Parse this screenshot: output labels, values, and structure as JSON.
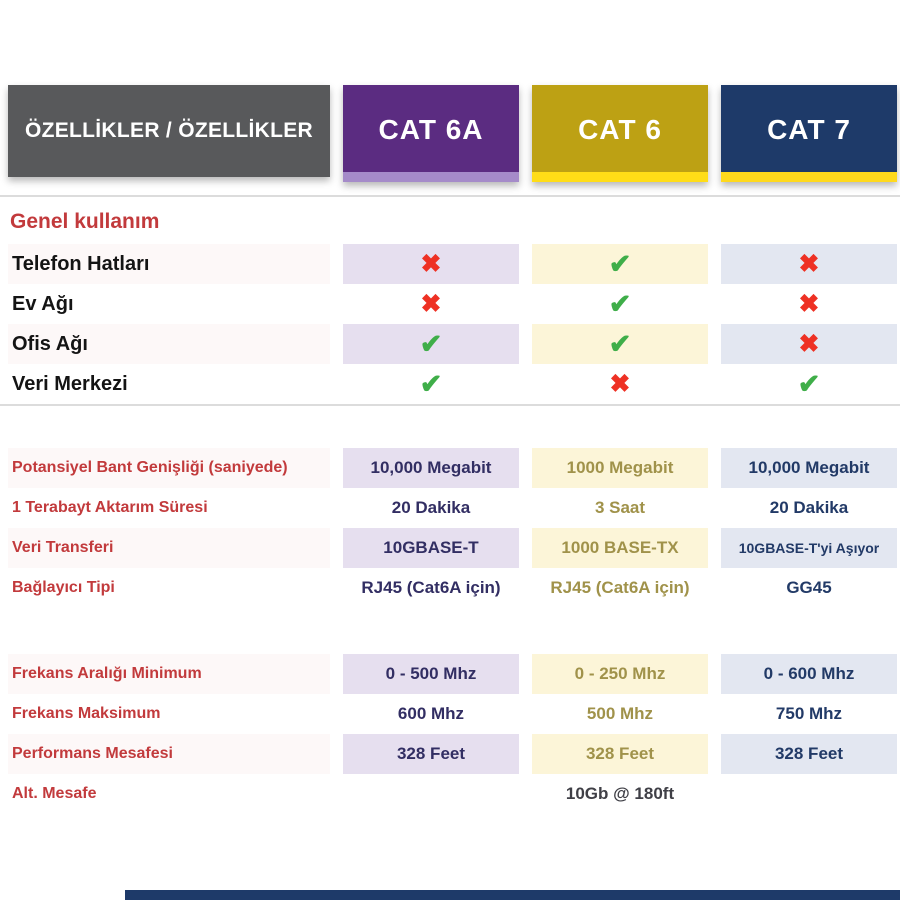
{
  "header": {
    "features_label": "ÖZELLİKLER / ÖZELLİKLER",
    "columns": [
      {
        "id": "cat6a",
        "label": "CAT 6A"
      },
      {
        "id": "cat6",
        "label": "CAT 6"
      },
      {
        "id": "cat7",
        "label": "CAT 7"
      }
    ]
  },
  "sections": {
    "general": {
      "title": "Genel kullanım",
      "rows": [
        {
          "label": "Telefon Hatları",
          "values": [
            "no",
            "yes",
            "no"
          ]
        },
        {
          "label": "Ev Ağı",
          "values": [
            "no",
            "yes",
            "no"
          ]
        },
        {
          "label": "Ofis Ağı",
          "values": [
            "yes",
            "yes",
            "no"
          ]
        },
        {
          "label": "Veri Merkezi",
          "values": [
            "yes",
            "no",
            "yes"
          ]
        }
      ]
    },
    "specs": {
      "rows": [
        {
          "label": "Potansiyel Bant Genişliği (saniyede)",
          "values": [
            "10,000 Megabit",
            "1000 Megabit",
            "10,000 Megabit"
          ]
        },
        {
          "label": "1 Terabayt Aktarım Süresi",
          "values": [
            "20 Dakika",
            "3 Saat",
            "20 Dakika"
          ]
        },
        {
          "label": "Veri Transferi",
          "values": [
            "10GBASE-T",
            "1000 BASE-TX",
            "10GBASE-T'yi Aşıyor"
          ]
        },
        {
          "label": "Bağlayıcı Tipi",
          "values": [
            "RJ45 (Cat6A için)",
            "RJ45 (Cat6A için)",
            "GG45"
          ]
        }
      ]
    },
    "frequency": {
      "rows": [
        {
          "label": "Frekans Aralığı Minimum",
          "values": [
            "0 - 500 Mhz",
            "0 - 250 Mhz",
            "0 - 600 Mhz"
          ]
        },
        {
          "label": "Frekans Maksimum",
          "values": [
            "600 Mhz",
            "500 Mhz",
            "750 Mhz"
          ]
        },
        {
          "label": "Performans Mesafesi",
          "values": [
            "328 Feet",
            "328 Feet",
            "328 Feet"
          ]
        },
        {
          "label": "Alt. Mesafe",
          "values": [
            "",
            "10Gb @ 180ft",
            ""
          ]
        }
      ]
    }
  },
  "chart_data": {
    "type": "table",
    "title": "ÖZELLİKLER / ÖZELLİKLER",
    "columns": [
      "CAT 6A",
      "CAT 6",
      "CAT 7"
    ],
    "rows": [
      {
        "label": "Telefon Hatları",
        "values": [
          "no",
          "yes",
          "no"
        ]
      },
      {
        "label": "Ev Ağı",
        "values": [
          "no",
          "yes",
          "no"
        ]
      },
      {
        "label": "Ofis Ağı",
        "values": [
          "yes",
          "yes",
          "no"
        ]
      },
      {
        "label": "Veri Merkezi",
        "values": [
          "yes",
          "no",
          "yes"
        ]
      },
      {
        "label": "Potansiyel Bant Genişliği (saniyede)",
        "values": [
          "10,000 Megabit",
          "1000 Megabit",
          "10,000 Megabit"
        ]
      },
      {
        "label": "1 Terabayt Aktarım Süresi",
        "values": [
          "20 Dakika",
          "3 Saat",
          "20 Dakika"
        ]
      },
      {
        "label": "Veri Transferi",
        "values": [
          "10GBASE-T",
          "1000 BASE-TX",
          "10GBASE-T'yi Aşıyor"
        ]
      },
      {
        "label": "Bağlayıcı Tipi",
        "values": [
          "RJ45 (Cat6A için)",
          "RJ45 (Cat6A için)",
          "GG45"
        ]
      },
      {
        "label": "Frekans Aralığı Minimum",
        "values": [
          "0 - 500 Mhz",
          "0 - 250 Mhz",
          "0 - 600 Mhz"
        ]
      },
      {
        "label": "Frekans Maksimum",
        "values": [
          "600 Mhz",
          "500 Mhz",
          "750 Mhz"
        ]
      },
      {
        "label": "Performans Mesafesi",
        "values": [
          "328 Feet",
          "328 Feet",
          "328 Feet"
        ]
      },
      {
        "label": "Alt. Mesafe",
        "values": [
          "",
          "10Gb @ 180ft",
          ""
        ]
      }
    ]
  },
  "icons": {
    "check": "✔",
    "cross": "✖"
  },
  "colors": {
    "header_gray": "#58595b",
    "cat6a": "#5b2c81",
    "cat6a_strip": "#a58bc9",
    "cat6a_tint": "#e6dfef",
    "cat6a_text": "#322e63",
    "cat6": "#bda114",
    "cat6_strip": "#ffdd17",
    "cat6_tint": "#fcf5d8",
    "cat6_text": "#a0924a",
    "cat7": "#1e3a69",
    "cat7_strip": "#ffd91c",
    "cat7_tint": "#e3e7f1",
    "cat7_text": "#223a67",
    "label_red": "#c23a3c",
    "check_green": "#3fae49",
    "cross_red": "#ee3124",
    "divider": "#dcdcdc",
    "bottom_bar": "#1e3a69"
  }
}
